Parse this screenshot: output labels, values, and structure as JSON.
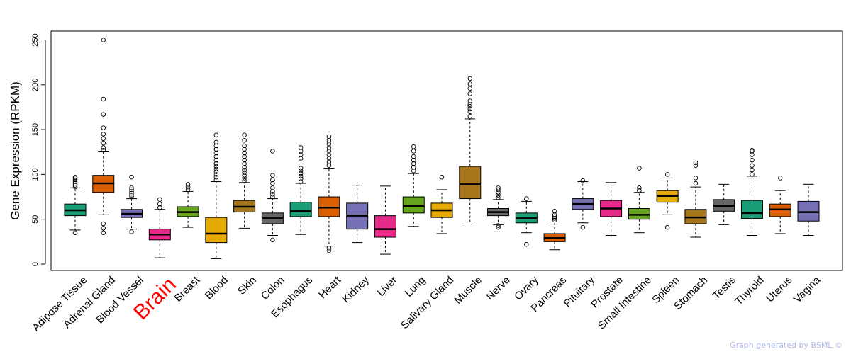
{
  "chart_data": {
    "type": "boxplot",
    "ylabel": "Gene Expression (RPKM)",
    "ylim": [
      0,
      250
    ],
    "yticks": [
      0,
      50,
      100,
      150,
      200,
      250
    ],
    "highlight": "Brain",
    "highlight_color": "#ff0000",
    "series": [
      {
        "name": "Adipose Tissue",
        "color": "#1b9e77",
        "whisker_low": 38,
        "q1": 54,
        "median": 60,
        "q3": 67,
        "whisker_high": 85,
        "outliers": [
          35,
          86,
          88,
          90,
          92,
          94,
          96,
          97
        ]
      },
      {
        "name": "Adrenal Gland",
        "color": "#d95f02",
        "whisker_low": 55,
        "q1": 80,
        "median": 90,
        "q3": 99,
        "whisker_high": 126,
        "outliers": [
          35,
          40,
          45,
          127,
          130,
          135,
          140,
          145,
          152,
          167,
          184,
          250
        ]
      },
      {
        "name": "Blood Vessel",
        "color": "#7570b3",
        "whisker_low": 39,
        "q1": 52,
        "median": 56,
        "q3": 61,
        "whisker_high": 73,
        "outliers": [
          36,
          75,
          77,
          79,
          81,
          83,
          85,
          97
        ]
      },
      {
        "name": "Brain",
        "color": "#e7298a",
        "whisker_low": 7,
        "q1": 27,
        "median": 33,
        "q3": 39,
        "whisker_high": 61,
        "outliers": [
          63,
          67,
          72
        ]
      },
      {
        "name": "Breast",
        "color": "#66a61e",
        "whisker_low": 41,
        "q1": 53,
        "median": 58,
        "q3": 64,
        "whisker_high": 81,
        "outliers": [
          83,
          86,
          89
        ]
      },
      {
        "name": "Blood",
        "color": "#e6ab02",
        "whisker_low": 6,
        "q1": 24,
        "median": 34,
        "q3": 52,
        "whisker_high": 92,
        "outliers": [
          94,
          97,
          100,
          103,
          106,
          109,
          112,
          116,
          120,
          124,
          128,
          132,
          136,
          144
        ]
      },
      {
        "name": "Skin",
        "color": "#a6761d",
        "whisker_low": 40,
        "q1": 58,
        "median": 64,
        "q3": 71,
        "whisker_high": 91,
        "outliers": [
          93,
          96,
          99,
          102,
          105,
          108,
          112,
          116,
          120,
          124,
          128,
          132,
          138,
          144
        ]
      },
      {
        "name": "Colon",
        "color": "#666666",
        "whisker_low": 32,
        "q1": 45,
        "median": 51,
        "q3": 57,
        "whisker_high": 73,
        "outliers": [
          27,
          75,
          78,
          81,
          85,
          90,
          94,
          99,
          126
        ]
      },
      {
        "name": "Esophagus",
        "color": "#1b9e77",
        "whisker_low": 33,
        "q1": 53,
        "median": 59,
        "q3": 69,
        "whisker_high": 90,
        "outliers": [
          92,
          95,
          98,
          101,
          104,
          107,
          118,
          122,
          126,
          130
        ]
      },
      {
        "name": "Heart",
        "color": "#d95f02",
        "whisker_low": 20,
        "q1": 53,
        "median": 63,
        "q3": 75,
        "whisker_high": 107,
        "outliers": [
          15,
          18,
          110,
          114,
          118,
          122,
          126,
          130,
          134,
          138,
          142
        ]
      },
      {
        "name": "Kidney",
        "color": "#7570b3",
        "whisker_low": 24,
        "q1": 39,
        "median": 54,
        "q3": 68,
        "whisker_high": 88,
        "outliers": []
      },
      {
        "name": "Liver",
        "color": "#e7298a",
        "whisker_low": 11,
        "q1": 30,
        "median": 39,
        "q3": 54,
        "whisker_high": 87,
        "outliers": []
      },
      {
        "name": "Lung",
        "color": "#66a61e",
        "whisker_low": 42,
        "q1": 57,
        "median": 65,
        "q3": 75,
        "whisker_high": 101,
        "outliers": [
          104,
          108,
          112,
          116,
          120,
          126,
          131
        ]
      },
      {
        "name": "Salivary Gland",
        "color": "#e6ab02",
        "whisker_low": 34,
        "q1": 52,
        "median": 60,
        "q3": 68,
        "whisker_high": 83,
        "outliers": [
          97
        ]
      },
      {
        "name": "Muscle",
        "color": "#a6761d",
        "whisker_low": 47,
        "q1": 73,
        "median": 89,
        "q3": 109,
        "whisker_high": 162,
        "outliers": [
          165,
          170,
          173,
          176,
          178,
          182,
          190,
          196,
          201,
          207
        ]
      },
      {
        "name": "Nerve",
        "color": "#666666",
        "whisker_low": 44,
        "q1": 54,
        "median": 58,
        "q3": 62,
        "whisker_high": 72,
        "outliers": [
          41,
          43,
          74,
          77,
          80,
          83,
          85
        ]
      },
      {
        "name": "Ovary",
        "color": "#1b9e77",
        "whisker_low": 35,
        "q1": 46,
        "median": 51,
        "q3": 57,
        "whisker_high": 70,
        "outliers": [
          22,
          73
        ]
      },
      {
        "name": "Pancreas",
        "color": "#d95f02",
        "whisker_low": 16,
        "q1": 25,
        "median": 29,
        "q3": 34,
        "whisker_high": 47,
        "outliers": [
          49,
          51,
          53,
          55,
          59
        ]
      },
      {
        "name": "Pituitary",
        "color": "#7570b3",
        "whisker_low": 46,
        "q1": 61,
        "median": 67,
        "q3": 73,
        "whisker_high": 92,
        "outliers": [
          41,
          93
        ]
      },
      {
        "name": "Prostate",
        "color": "#e7298a",
        "whisker_low": 32,
        "q1": 53,
        "median": 62,
        "q3": 71,
        "whisker_high": 91,
        "outliers": []
      },
      {
        "name": "Small Intestine",
        "color": "#66a61e",
        "whisker_low": 35,
        "q1": 50,
        "median": 55,
        "q3": 62,
        "whisker_high": 80,
        "outliers": [
          82,
          85,
          107
        ]
      },
      {
        "name": "Spleen",
        "color": "#e6ab02",
        "whisker_low": 55,
        "q1": 69,
        "median": 76,
        "q3": 82,
        "whisker_high": 96,
        "outliers": [
          41,
          100
        ]
      },
      {
        "name": "Stomach",
        "color": "#a6761d",
        "whisker_low": 30,
        "q1": 45,
        "median": 52,
        "q3": 61,
        "whisker_high": 86,
        "outliers": [
          90,
          96,
          110,
          113
        ]
      },
      {
        "name": "Testis",
        "color": "#666666",
        "whisker_low": 44,
        "q1": 59,
        "median": 65,
        "q3": 72,
        "whisker_high": 89,
        "outliers": []
      },
      {
        "name": "Thyroid",
        "color": "#1b9e77",
        "whisker_low": 32,
        "q1": 51,
        "median": 57,
        "q3": 71,
        "whisker_high": 98,
        "outliers": [
          100,
          105,
          110,
          116,
          122,
          126,
          127
        ]
      },
      {
        "name": "Uterus",
        "color": "#d95f02",
        "whisker_low": 34,
        "q1": 53,
        "median": 61,
        "q3": 67,
        "whisker_high": 82,
        "outliers": [
          96
        ]
      },
      {
        "name": "Vagina",
        "color": "#7570b3",
        "whisker_low": 32,
        "q1": 48,
        "median": 58,
        "q3": 70,
        "whisker_high": 89,
        "outliers": []
      }
    ]
  },
  "footer": {
    "credit": "Graph generated by BSML ©"
  }
}
